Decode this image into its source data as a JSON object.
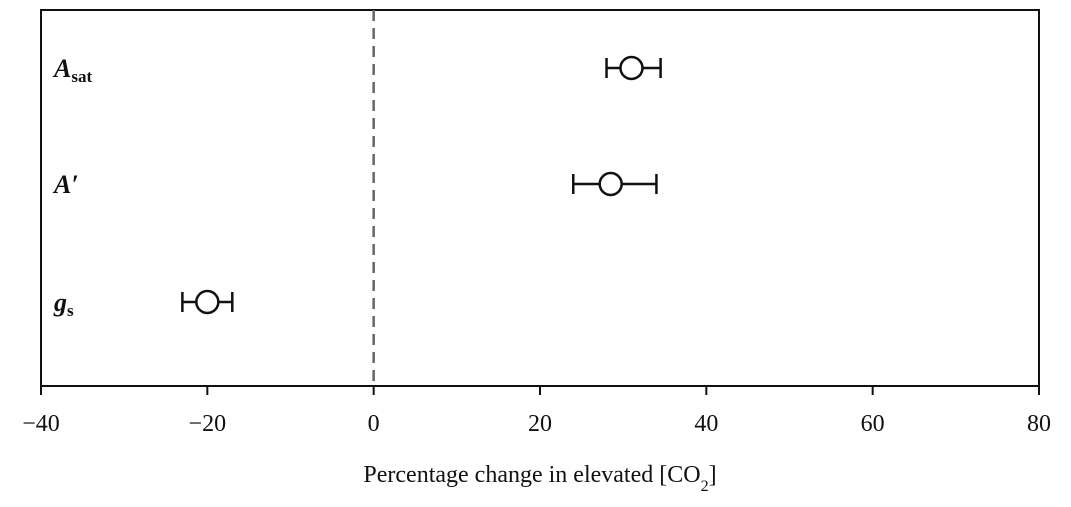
{
  "chart_data": {
    "type": "scatter",
    "title": "",
    "xlabel": {
      "prefix": "Percentage change in elevated [CO",
      "subscript": "2",
      "suffix": "]"
    },
    "xlim": [
      -40,
      80
    ],
    "xticks": [
      -40,
      -20,
      0,
      20,
      40,
      60,
      80
    ],
    "xtick_labels": [
      "−40",
      "−20",
      "0",
      "20",
      "40",
      "60",
      "80"
    ],
    "reference_line": {
      "x": 0,
      "style": "dashed"
    },
    "grid": false,
    "series": [
      {
        "label": {
          "main": "A",
          "sub": "sat"
        },
        "value": 31,
        "ci_low": 28,
        "ci_high": 34.5
      },
      {
        "label": {
          "main": "A′",
          "sub": ""
        },
        "value": 28.5,
        "ci_low": 24,
        "ci_high": 34
      },
      {
        "label": {
          "main": "g",
          "sub": "s"
        },
        "value": -20,
        "ci_low": -23,
        "ci_high": -17
      }
    ]
  }
}
